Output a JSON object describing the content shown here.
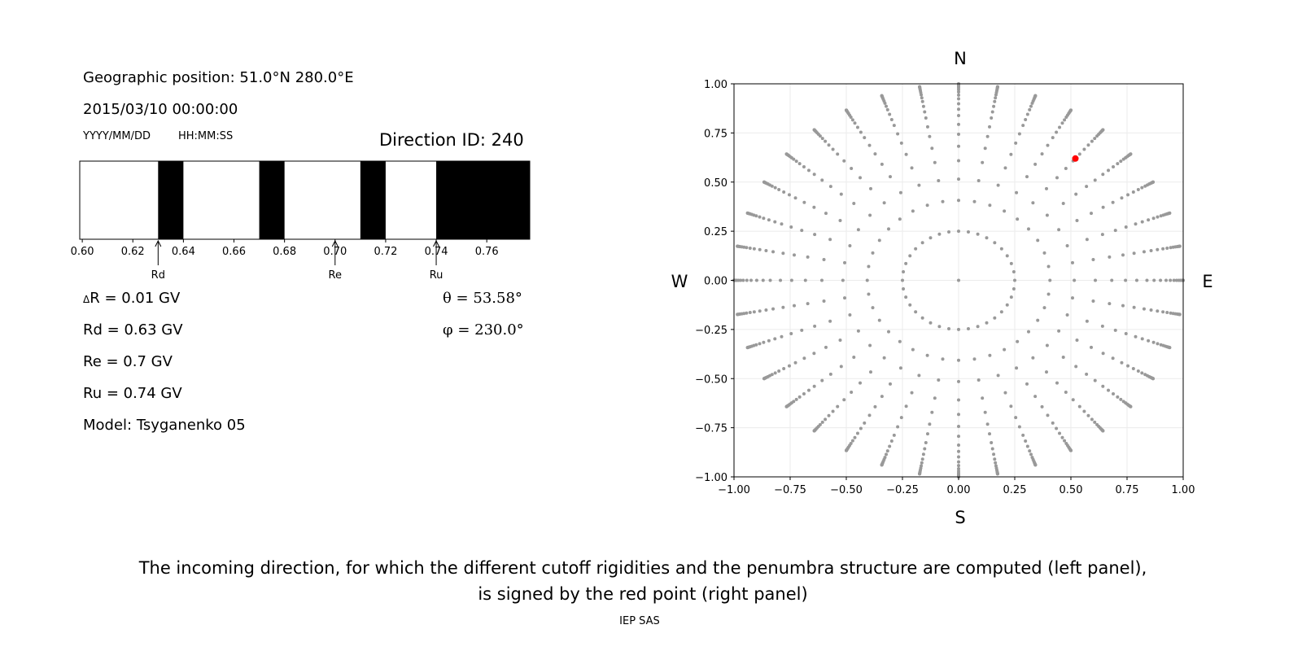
{
  "left": {
    "geo_position": "Geographic position: 51.0°N 280.0°E",
    "datetime": "2015/03/10 00:00:00",
    "date_format": "YYYY/MM/DD",
    "time_format": "HH:MM:SS",
    "direction_id": "Direction ID: 240",
    "delta_r_symbol": "Δ",
    "delta_r": "R = 0.01 GV",
    "rd": "Rd = 0.63 GV",
    "re": "Re = 0.7 GV",
    "ru": "Ru = 0.74 GV",
    "model": "Model: Tsyganenko 05",
    "theta": "θ = 53.58°",
    "phi": "φ = 230.0°"
  },
  "chart_data": [
    {
      "type": "bar",
      "subtype": "penumbra-band",
      "xlim": [
        0.599,
        0.777
      ],
      "xticks": [
        "0.60",
        "0.62",
        "0.64",
        "0.66",
        "0.68",
        "0.70",
        "0.72",
        "0.74",
        "0.76"
      ],
      "forbidden_bands": [
        [
          0.63,
          0.64
        ],
        [
          0.67,
          0.68
        ],
        [
          0.71,
          0.72
        ],
        [
          0.74,
          0.777
        ]
      ],
      "band_color": "#000000",
      "allowed_color": "#ffffff",
      "markers": [
        {
          "label": "Rd",
          "value": 0.63
        },
        {
          "label": "Re",
          "value": 0.7
        },
        {
          "label": "Ru",
          "value": 0.74
        }
      ]
    },
    {
      "type": "scatter",
      "xlim": [
        -1,
        1
      ],
      "ylim": [
        -1,
        1
      ],
      "grid": true,
      "xticks": [
        "−1.00",
        "−0.75",
        "−0.50",
        "−0.25",
        "0.00",
        "0.25",
        "0.50",
        "0.75",
        "1.00"
      ],
      "yticks": [
        "−1.00",
        "−0.75",
        "−0.50",
        "−0.25",
        "0.00",
        "0.25",
        "0.50",
        "0.75",
        "1.00"
      ],
      "direction_labels": {
        "north": "N",
        "south": "S",
        "east": "E",
        "west": "W"
      },
      "grid_points": {
        "color": "#999999",
        "center": [
          0,
          0
        ],
        "inner_ring_radius": 0.25,
        "inner_ring_count": 36,
        "ray_azimuth_step_deg": 10,
        "ray_zenith_angles_deg": [
          24,
          31,
          37.5,
          43,
          48,
          52.5,
          57,
          60.5,
          64,
          67.5,
          70.5,
          73.5,
          76,
          78.5,
          81,
          83,
          85,
          87,
          88.5,
          90
        ]
      },
      "selected_point": {
        "x": 0.52,
        "y": 0.62,
        "color": "#ff0000"
      }
    }
  ],
  "caption": {
    "line1": "The incoming direction, for which the different cutoff rigidities and the penumbra structure are computed (left panel),",
    "line2": "is signed by the red point (right panel)"
  },
  "footer": "IEP SAS"
}
